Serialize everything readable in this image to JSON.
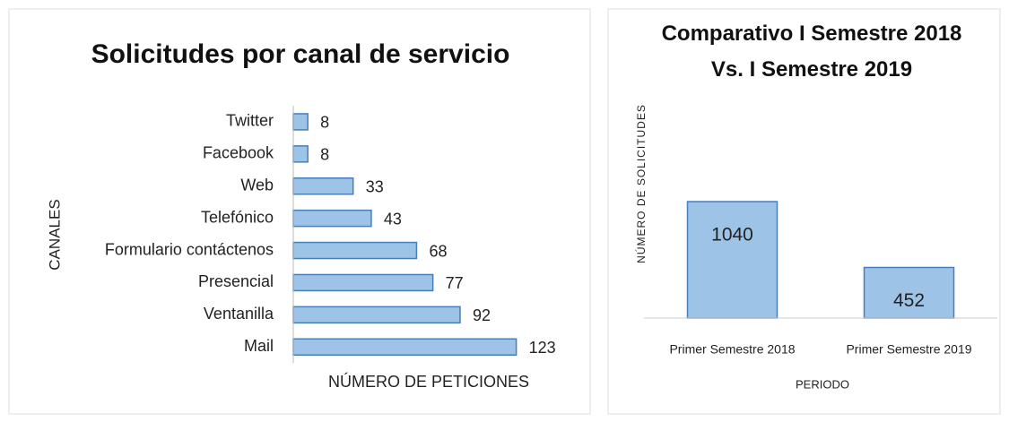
{
  "chart_data": [
    {
      "type": "bar",
      "orientation": "horizontal",
      "title": "Solicitudes  por canal  de servicio",
      "categories": [
        "Twitter",
        "Facebook",
        "Web",
        "Telefónico",
        "Formulario contáctenos",
        "Presencial",
        "Ventanilla",
        "Mail"
      ],
      "values": [
        8,
        8,
        33,
        43,
        68,
        77,
        92,
        123
      ],
      "color": "#9dc3e6",
      "xlabel": "NÚMERO DE PETICIONES",
      "ylabel": "CANALES",
      "xlim": [
        0,
        140
      ]
    },
    {
      "type": "bar",
      "orientation": "vertical",
      "title": "Comparativo  I Semestre 2018 Vs. I Semestre 2019",
      "categories": [
        "Primer Semestre 2018",
        "Primer Semestre 2019"
      ],
      "values": [
        1040,
        452
      ],
      "color": "#9dc3e6",
      "xlabel": "PERIODO",
      "ylabel": "NÚMERO DE SOLICITUDES",
      "ylim": [
        0,
        1200
      ]
    }
  ]
}
